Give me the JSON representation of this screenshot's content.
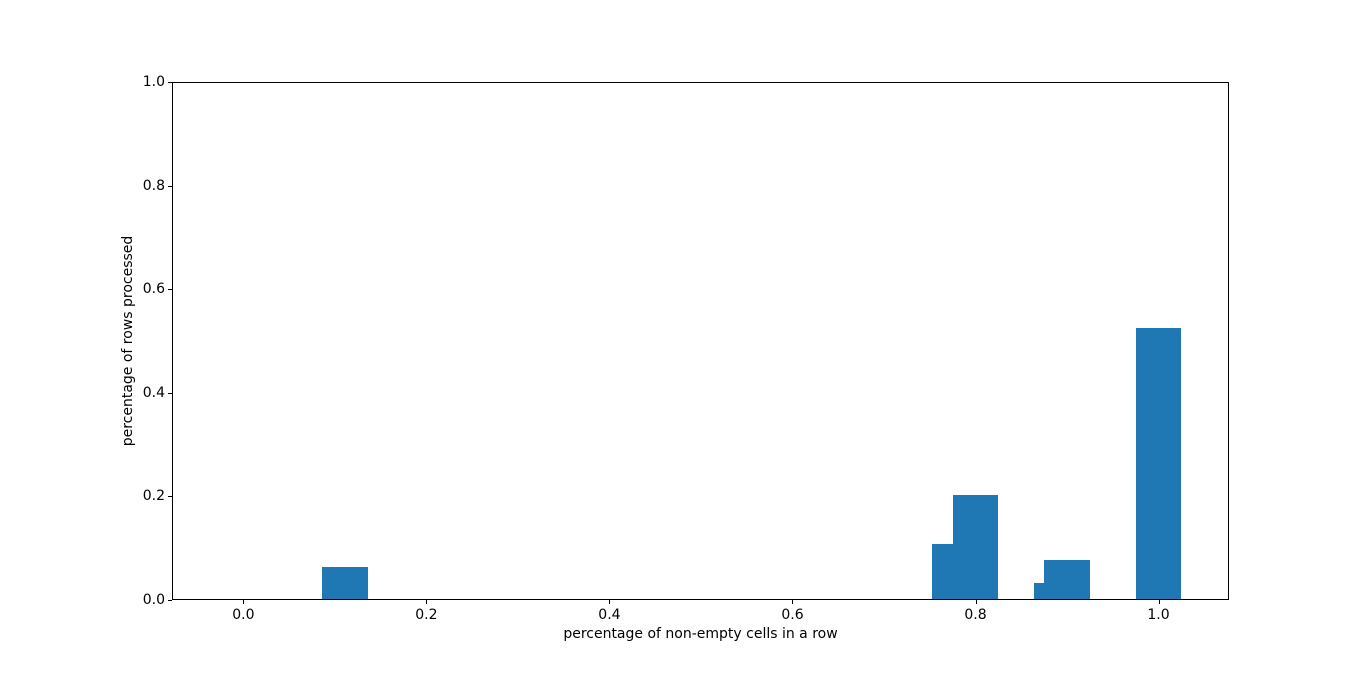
{
  "chart_data": {
    "type": "bar",
    "title": "",
    "xlabel": "percentage of non-empty cells in a row",
    "ylabel": "percentage of rows processed",
    "bar_color": "#1f77b4",
    "background_color": "#ffffff",
    "spine_color": "#000000",
    "bar_width": 0.05,
    "bars": [
      {
        "x": 0.111,
        "y": 0.061
      },
      {
        "x": 0.778,
        "y": 0.107
      },
      {
        "x": 0.8,
        "y": 0.2
      },
      {
        "x": 0.889,
        "y": 0.031
      },
      {
        "x": 0.9,
        "y": 0.076
      },
      {
        "x": 1.0,
        "y": 0.524
      }
    ],
    "xticks": {
      "values": [
        0.0,
        0.2,
        0.4,
        0.6,
        0.8,
        1.0
      ],
      "labels": [
        "0.0",
        "0.2",
        "0.4",
        "0.6",
        "0.8",
        "1.0"
      ]
    },
    "yticks": {
      "values": [
        0.0,
        0.2,
        0.4,
        0.6,
        0.8,
        1.0
      ],
      "labels": [
        "0.0",
        "0.2",
        "0.4",
        "0.6",
        "0.8",
        "1.0"
      ]
    },
    "xlim": [
      -0.078,
      1.077
    ],
    "ylim": [
      0.0,
      1.0
    ],
    "grid": false,
    "legend": null
  }
}
